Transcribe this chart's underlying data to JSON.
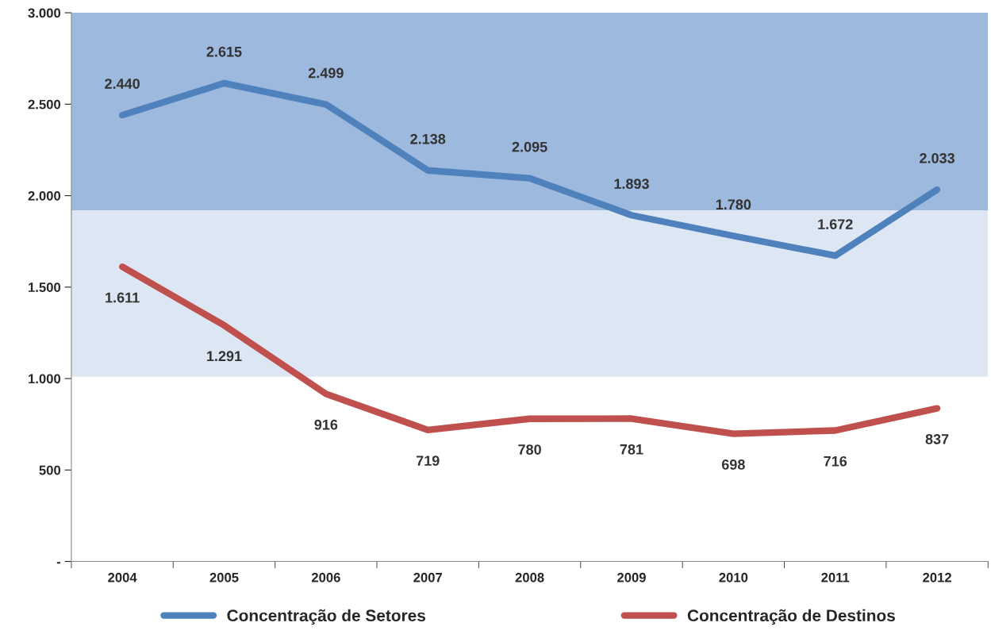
{
  "chart_data": {
    "type": "line",
    "categories": [
      "2004",
      "2005",
      "2006",
      "2007",
      "2008",
      "2009",
      "2010",
      "2011",
      "2012"
    ],
    "series": [
      {
        "name": "Concentração de Setores",
        "color": "#4f81bd",
        "values": [
          2440,
          2615,
          2499,
          2138,
          2095,
          1893,
          1780,
          1672,
          2033
        ],
        "value_labels": [
          "2.440",
          "2.615",
          "2.499",
          "2.138",
          "2.095",
          "1.893",
          "1.780",
          "1.672",
          "2.033"
        ]
      },
      {
        "name": "Concentração de Destinos",
        "color": "#c0504d",
        "values": [
          1611,
          1291,
          916,
          719,
          780,
          781,
          698,
          716,
          837
        ],
        "value_labels": [
          "1.611",
          "1.291",
          "916",
          "719",
          "780",
          "781",
          "698",
          "716",
          "837"
        ]
      }
    ],
    "ylim": [
      0,
      3000
    ],
    "yticks": [
      {
        "value": 0,
        "label": "-"
      },
      {
        "value": 500,
        "label": "500"
      },
      {
        "value": 1000,
        "label": "1.000"
      },
      {
        "value": 1500,
        "label": "1.500"
      },
      {
        "value": 2000,
        "label": "2.000"
      },
      {
        "value": 2500,
        "label": "2.500"
      },
      {
        "value": 3000,
        "label": "3.000"
      }
    ],
    "bands": [
      {
        "axis": "y",
        "from": 1920,
        "to": 3000,
        "color": "#9db9de"
      },
      {
        "axis": "y",
        "from": 1010,
        "to": 1920,
        "color": "#dde7f4"
      }
    ],
    "legend": "bottom",
    "grid": false,
    "marker": "none",
    "line_style": "solid"
  }
}
